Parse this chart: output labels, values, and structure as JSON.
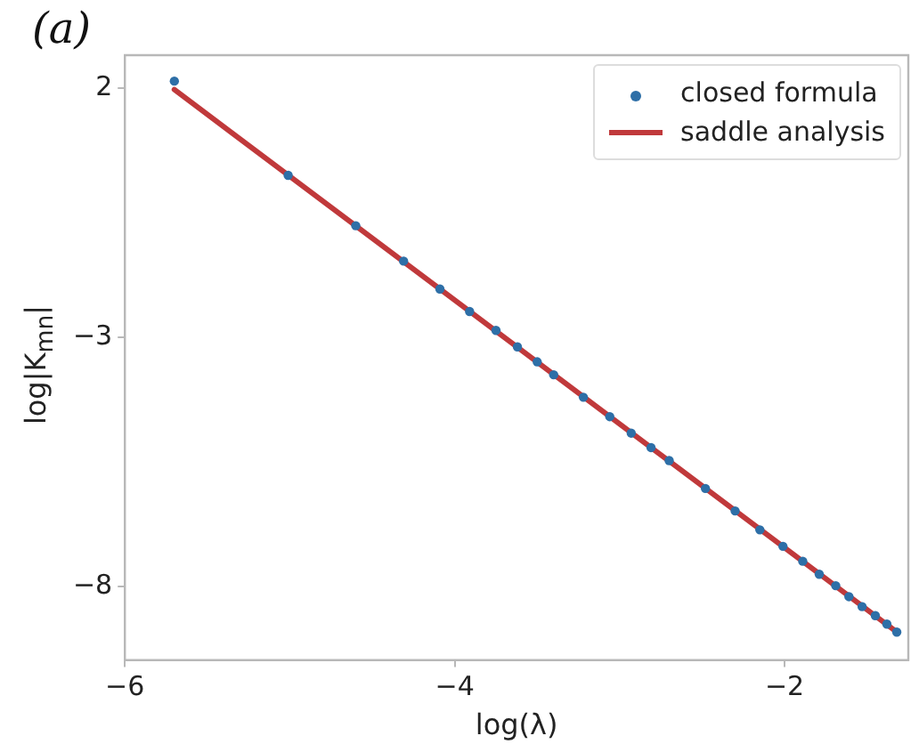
{
  "chart_data": {
    "type": "scatter",
    "title": "(a)",
    "xlabel": "log(λ)",
    "ylabel": "log|K$_{mn}$|",
    "xlim": [
      -6,
      -1.25
    ],
    "ylim": [
      -9.47,
      2.66
    ],
    "xticks": [
      -6,
      -4,
      -2
    ],
    "yticks": [
      2,
      -3,
      -8
    ],
    "grid": false,
    "legend": "top right",
    "series": [
      {
        "name": "closed formula",
        "marker": "circle",
        "color": "#2e6fa7",
        "x": [
          -5.7,
          -5.01,
          -4.6,
          -4.31,
          -4.09,
          -3.91,
          -3.75,
          -3.62,
          -3.5,
          -3.4,
          -3.22,
          -3.06,
          -2.93,
          -2.81,
          -2.7,
          -2.48,
          -2.3,
          -2.15,
          -2.01,
          -1.89,
          -1.79,
          -1.69,
          -1.61,
          -1.53,
          -1.45,
          -1.38,
          -1.32
        ],
        "values": [
          2.14,
          0.25,
          -0.76,
          -1.47,
          -2.03,
          -2.48,
          -2.86,
          -3.19,
          -3.49,
          -3.75,
          -4.2,
          -4.59,
          -4.92,
          -5.21,
          -5.47,
          -6.03,
          -6.48,
          -6.86,
          -7.19,
          -7.49,
          -7.75,
          -7.98,
          -8.2,
          -8.4,
          -8.58,
          -8.75,
          -8.91
        ]
      },
      {
        "name": "saddle analysis",
        "type": "line",
        "marker": "none",
        "line_style": "solid",
        "color": "#c0393b",
        "x": [
          -5.7,
          -1.32
        ],
        "values": [
          1.97,
          -8.91
        ]
      }
    ]
  }
}
